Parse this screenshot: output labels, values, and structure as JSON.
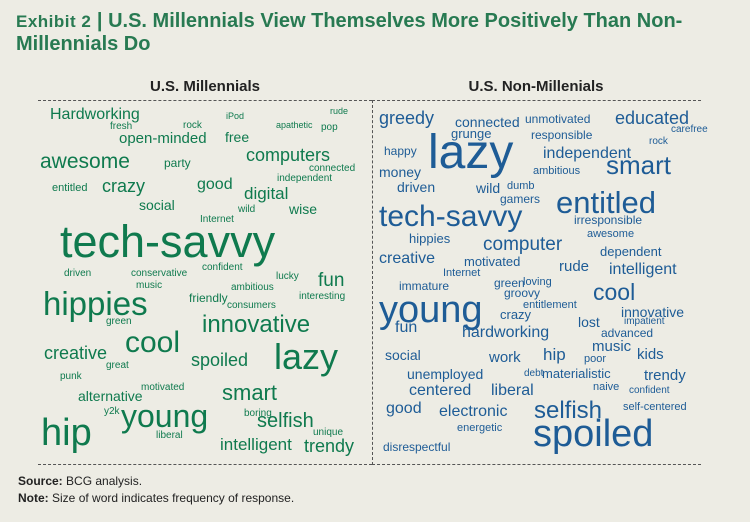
{
  "header": {
    "exhibit": "Exhibit 2",
    "separator": "|",
    "title": "U.S. Millennials View Themselves More Positively Than Non-Millennials Do"
  },
  "colors": {
    "millennials": "#0f7a4e",
    "non_millennials": "#1e5c96",
    "title": "#287a52"
  },
  "chart_data": [
    {
      "type": "wordcloud",
      "title": "U.S. Millennials",
      "words": [
        "Hardworking",
        "iPod",
        "rude",
        "fresh",
        "rock",
        "apathetic",
        "pop",
        "open-minded",
        "free",
        "awesome",
        "party",
        "computers",
        "connected",
        "independent",
        "entitled",
        "crazy",
        "good",
        "digital",
        "social",
        "wild",
        "wise",
        "Internet",
        "tech-savvy",
        "driven",
        "conservative",
        "lucky",
        "fun",
        "music",
        "confident",
        "hippies",
        "friendly",
        "ambitious",
        "consumers",
        "interesting",
        "green",
        "innovative",
        "creative",
        "cool",
        "great",
        "lazy",
        "spoiled",
        "punk",
        "alternative",
        "motivated",
        "smart",
        "y2k",
        "young",
        "boring",
        "selfish",
        "hip",
        "liberal",
        "unique",
        "intelligent",
        "trendy"
      ]
    },
    {
      "type": "wordcloud",
      "title": "U.S. Non-Millenials",
      "words": [
        "greedy",
        "educated",
        "connected",
        "unmotivated",
        "carefree",
        "grunge",
        "responsible",
        "rock",
        "lazy",
        "happy",
        "independent",
        "smart",
        "money",
        "ambitious",
        "driven",
        "wild",
        "dumb",
        "gamers",
        "entitled",
        "tech-savvy",
        "irresponsible",
        "awesome",
        "hippies",
        "computer",
        "dependent",
        "creative",
        "motivated",
        "rude",
        "intelligent",
        "Internet",
        "immature",
        "green",
        "loving",
        "cool",
        "groovy",
        "entitlement",
        "young",
        "innovative",
        "fun",
        "crazy",
        "lost",
        "impatient",
        "hardworking",
        "advanced",
        "music",
        "social",
        "hip",
        "kids",
        "work",
        "poor",
        "unemployed",
        "debt",
        "materialistic",
        "trendy",
        "centered",
        "liberal",
        "naive",
        "good",
        "confident",
        "selfish",
        "self-centered",
        "electronic",
        "energetic",
        "spoiled",
        "disrespectful"
      ]
    }
  ],
  "footer": {
    "source_label": "Source:",
    "source_text": "BCG analysis.",
    "note_label": "Note:",
    "note_text": "Size of word indicates frequency of response."
  }
}
